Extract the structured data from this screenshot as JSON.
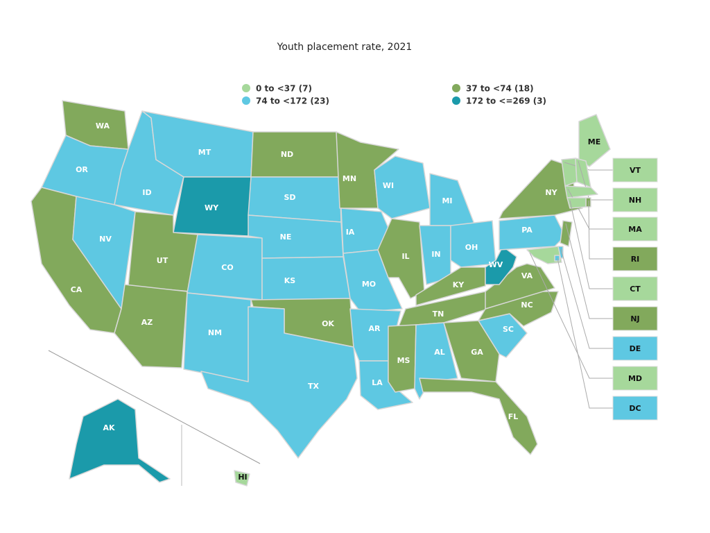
{
  "title": "Youth placement rate, 2021",
  "legend": [
    {
      "label": "0 to <37 (7)",
      "color": "#a6d89b"
    },
    {
      "label": "37 to <74 (18)",
      "color": "#82a95c"
    },
    {
      "label": "74 to <172 (23)",
      "color": "#5ec8e2"
    },
    {
      "label": "172 to <=269 (3)",
      "color": "#1b9aaa"
    }
  ],
  "states": [
    {
      "abbr": "WA",
      "bin": 1
    },
    {
      "abbr": "OR",
      "bin": 2
    },
    {
      "abbr": "CA",
      "bin": 1
    },
    {
      "abbr": "NV",
      "bin": 2
    },
    {
      "abbr": "ID",
      "bin": 2
    },
    {
      "abbr": "MT",
      "bin": 2
    },
    {
      "abbr": "WY",
      "bin": 3
    },
    {
      "abbr": "UT",
      "bin": 1
    },
    {
      "abbr": "AZ",
      "bin": 1
    },
    {
      "abbr": "CO",
      "bin": 2
    },
    {
      "abbr": "NM",
      "bin": 2
    },
    {
      "abbr": "ND",
      "bin": 1
    },
    {
      "abbr": "SD",
      "bin": 2
    },
    {
      "abbr": "NE",
      "bin": 2
    },
    {
      "abbr": "KS",
      "bin": 2
    },
    {
      "abbr": "OK",
      "bin": 1
    },
    {
      "abbr": "TX",
      "bin": 2
    },
    {
      "abbr": "MN",
      "bin": 1
    },
    {
      "abbr": "IA",
      "bin": 2
    },
    {
      "abbr": "MO",
      "bin": 2
    },
    {
      "abbr": "AR",
      "bin": 2
    },
    {
      "abbr": "LA",
      "bin": 2
    },
    {
      "abbr": "WI",
      "bin": 2
    },
    {
      "abbr": "IL",
      "bin": 1
    },
    {
      "abbr": "MI",
      "bin": 2
    },
    {
      "abbr": "IN",
      "bin": 2
    },
    {
      "abbr": "OH",
      "bin": 2
    },
    {
      "abbr": "KY",
      "bin": 1
    },
    {
      "abbr": "TN",
      "bin": 1
    },
    {
      "abbr": "MS",
      "bin": 1
    },
    {
      "abbr": "AL",
      "bin": 2
    },
    {
      "abbr": "GA",
      "bin": 1
    },
    {
      "abbr": "FL",
      "bin": 1
    },
    {
      "abbr": "SC",
      "bin": 2
    },
    {
      "abbr": "NC",
      "bin": 1
    },
    {
      "abbr": "VA",
      "bin": 1
    },
    {
      "abbr": "WV",
      "bin": 3
    },
    {
      "abbr": "PA",
      "bin": 2
    },
    {
      "abbr": "NY",
      "bin": 1
    },
    {
      "abbr": "ME",
      "bin": 0
    },
    {
      "abbr": "AK",
      "bin": 3
    },
    {
      "abbr": "HI",
      "bin": 0
    },
    {
      "abbr": "VT",
      "bin": 0
    },
    {
      "abbr": "NH",
      "bin": 0
    },
    {
      "abbr": "MA",
      "bin": 0
    },
    {
      "abbr": "RI",
      "bin": 1
    },
    {
      "abbr": "CT",
      "bin": 0
    },
    {
      "abbr": "NJ",
      "bin": 1
    },
    {
      "abbr": "DE",
      "bin": 2
    },
    {
      "abbr": "MD",
      "bin": 0
    },
    {
      "abbr": "DC",
      "bin": 2
    }
  ]
}
